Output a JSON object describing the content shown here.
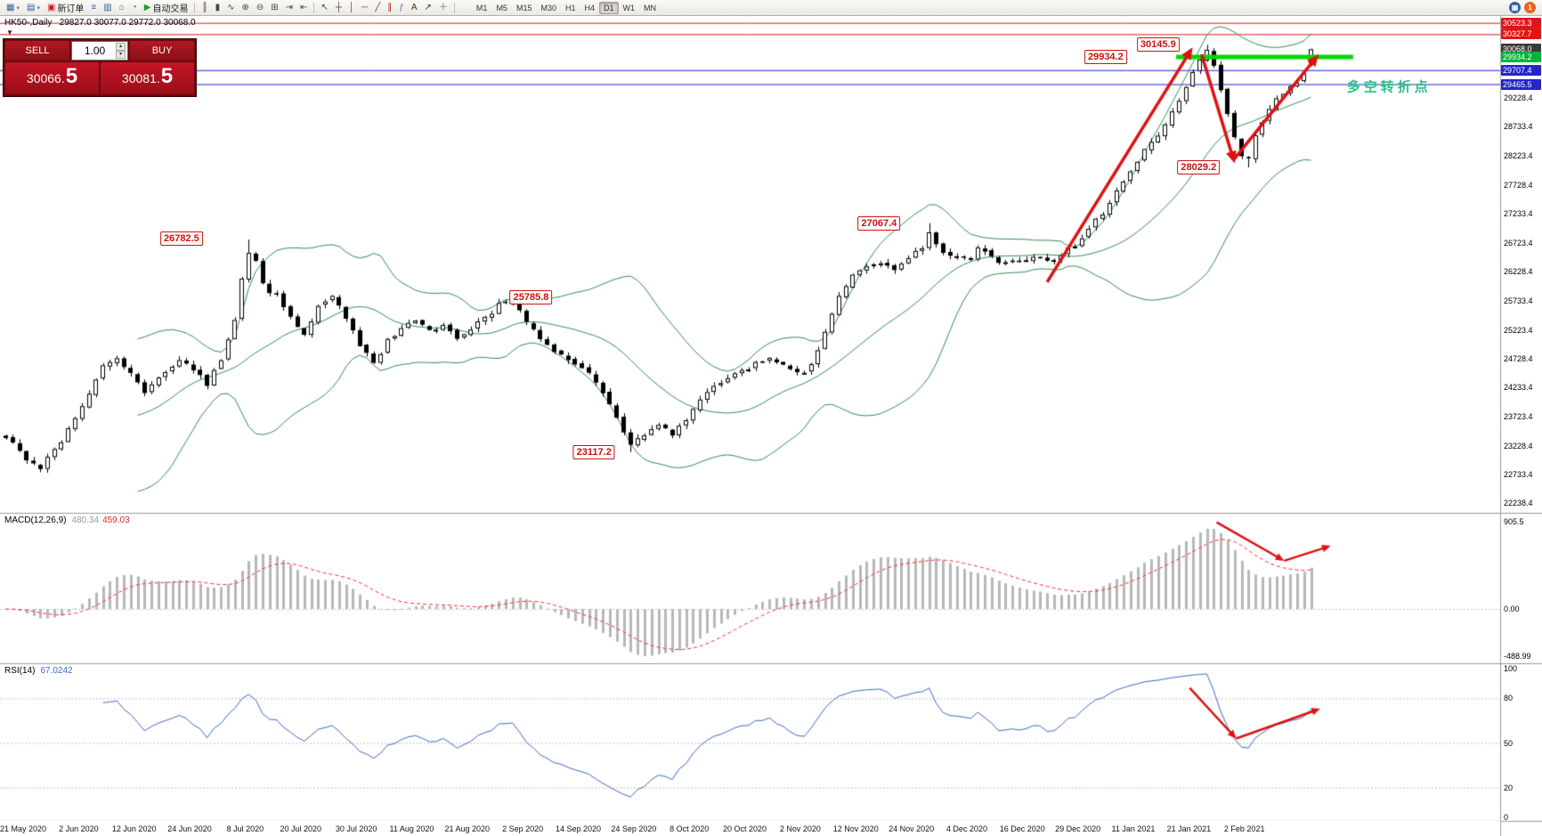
{
  "toolbar": {
    "icons": [
      {
        "name": "new-chart-icon",
        "glyph": "▦",
        "color": "#2d62a0",
        "dropdown": true
      },
      {
        "name": "profiles-icon",
        "glyph": "▤",
        "color": "#2d62a0",
        "dropdown": true
      },
      {
        "name": "new-order-button",
        "glyph": "▣",
        "color": "#c02020",
        "label": "新订单"
      },
      {
        "name": "market-watch-icon",
        "glyph": "≡",
        "color": "#2d62a0"
      },
      {
        "name": "data-window-icon",
        "glyph": "▥",
        "color": "#2d62a0"
      },
      {
        "name": "navigator-icon",
        "glyph": "⌂",
        "color": "#2d62a0"
      },
      {
        "name": "strategy-tester-icon",
        "glyph": "◔",
        "color": "#2d8a2d"
      },
      {
        "name": "autotrading-button",
        "glyph": "▶",
        "color": "#1d9e1d",
        "label": "自动交易"
      },
      {
        "sep": true
      },
      {
        "name": "bar-chart-icon",
        "glyph": "║",
        "color": "#444444"
      },
      {
        "name": "candlestick-chart-icon",
        "glyph": "▮",
        "color": "#444444"
      },
      {
        "name": "line-chart-icon",
        "glyph": "∿",
        "color": "#444444"
      },
      {
        "name": "zoom-in-icon",
        "glyph": "⊕",
        "color": "#444444"
      },
      {
        "name": "zoom-out-icon",
        "glyph": "⊖",
        "color": "#444444"
      },
      {
        "name": "tile-windows-icon",
        "glyph": "⊞",
        "color": "#444444"
      },
      {
        "name": "auto-scroll-icon",
        "glyph": "⇥",
        "color": "#444444"
      },
      {
        "name": "chart-shift-icon",
        "glyph": "⇤",
        "color": "#444444"
      },
      {
        "sep": true
      },
      {
        "name": "cursor-icon",
        "glyph": "↖",
        "color": "#444444"
      },
      {
        "name": "crosshair-icon",
        "glyph": "┼",
        "color": "#444444"
      },
      {
        "name": "vertical-line-icon",
        "glyph": "│",
        "color": "#b22222"
      },
      {
        "name": "horizontal-line-icon",
        "glyph": "─",
        "color": "#b22222"
      },
      {
        "name": "trendline-icon",
        "glyph": "╱",
        "color": "#b22222"
      },
      {
        "name": "equidistant-channel-icon",
        "glyph": "∥",
        "color": "#b22222"
      },
      {
        "name": "fibonacci-icon",
        "glyph": "ƒ",
        "color": "#8860b0"
      },
      {
        "name": "text-icon",
        "glyph": "A",
        "color": "#333333"
      },
      {
        "name": "arrows-icon",
        "glyph": "↗",
        "color": "#333333"
      },
      {
        "name": "indicators-icon",
        "glyph": "＋",
        "color": "#1d9e1d"
      },
      {
        "sep": true
      }
    ],
    "timeframes": [
      "M1",
      "M5",
      "M15",
      "M30",
      "H1",
      "H4",
      "D1",
      "W1",
      "MN"
    ],
    "active_timeframe": "D1",
    "right_icons": [
      {
        "name": "community-icon",
        "glyph": "▣",
        "color": "#2d62a0"
      },
      {
        "name": "notification-badge",
        "glyph": "1",
        "color": "#e8641e"
      }
    ]
  },
  "chart_info": {
    "text": "HK50-,Daily   29827.0 30077.0 29772.0 30068.0"
  },
  "trade_panel": {
    "collapse_icon": "▼",
    "sell_label": "SELL",
    "buy_label": "BUY",
    "volume": "1.00",
    "spin_up": "▴",
    "spin_down": "▾",
    "sell_price_main": "30066.",
    "sell_price_frac": "5",
    "buy_price_main": "30081.",
    "buy_price_frac": "5"
  },
  "chart_data": {
    "type": "candlestick",
    "symbol": "HK50-",
    "timeframe": "Daily",
    "ohlc_last": [
      29827.0,
      30077.0,
      29772.0,
      30068.0
    ],
    "arrow_color": "#dd1111",
    "price_axis": {
      "min": 22070,
      "max": 30641,
      "plain_labels": [
        "29228.4",
        "28733.4",
        "28223.4",
        "27728.4",
        "27233.4",
        "26723.4",
        "26228.4",
        "25733.4",
        "25223.4",
        "24728.4",
        "24233.4",
        "23723.4",
        "23228.4",
        "22733.4",
        "22238.4"
      ],
      "tagged_labels": [
        {
          "value": 30523.3,
          "text": "30523.3",
          "bg": "#e01616"
        },
        {
          "value": 30327.7,
          "text": "30327.7",
          "bg": "#e01616"
        },
        {
          "value": 30068.0,
          "text": "30068.0",
          "bg": "#3a3a3a"
        },
        {
          "value": 29934.2,
          "text": "29934.2",
          "bg": "#00b43c"
        },
        {
          "value": 29707.4,
          "text": "29707.4",
          "bg": "#2525cc"
        },
        {
          "value": 29465.5,
          "text": "29465.5",
          "bg": "#2525cc"
        }
      ]
    },
    "horizontal_lines": [
      {
        "price": 30523.3,
        "color": "#e01616"
      },
      {
        "price": 30327.7,
        "color": "#e01616"
      },
      {
        "price": 29707.4,
        "color": "#2525cc"
      },
      {
        "price": 29465.5,
        "color": "#2525cc"
      }
    ],
    "support_segment": {
      "price": 29934.2,
      "x1f": 0.784,
      "x2f": 0.902,
      "color": "#00d800",
      "width": 5
    },
    "candles": {
      "count": 189,
      "anchors": [
        [
          0,
          23400
        ],
        [
          3,
          23000
        ],
        [
          5,
          22850
        ],
        [
          8,
          23300
        ],
        [
          11,
          23950
        ],
        [
          14,
          24600
        ],
        [
          16,
          24750
        ],
        [
          18,
          24500
        ],
        [
          20,
          24100
        ],
        [
          22,
          24450
        ],
        [
          25,
          24700
        ],
        [
          27,
          24550
        ],
        [
          29,
          24300
        ],
        [
          31,
          24700
        ],
        [
          33,
          25400
        ],
        [
          34,
          26100
        ],
        [
          35,
          26600
        ],
        [
          36,
          26450
        ],
        [
          37,
          26000
        ],
        [
          39,
          25800
        ],
        [
          41,
          25500
        ],
        [
          43,
          25150
        ],
        [
          45,
          25600
        ],
        [
          47,
          25850
        ],
        [
          49,
          25450
        ],
        [
          51,
          24950
        ],
        [
          53,
          24650
        ],
        [
          55,
          25050
        ],
        [
          57,
          25250
        ],
        [
          59,
          25400
        ],
        [
          61,
          25200
        ],
        [
          63,
          25350
        ],
        [
          65,
          25100
        ],
        [
          67,
          25250
        ],
        [
          69,
          25450
        ],
        [
          71,
          25650
        ],
        [
          73,
          25700
        ],
        [
          75,
          25400
        ],
        [
          77,
          25050
        ],
        [
          79,
          24850
        ],
        [
          81,
          24700
        ],
        [
          83,
          24550
        ],
        [
          85,
          24350
        ],
        [
          87,
          23950
        ],
        [
          89,
          23450
        ],
        [
          90,
          23250
        ],
        [
          92,
          23400
        ],
        [
          94,
          23550
        ],
        [
          96,
          23450
        ],
        [
          98,
          23700
        ],
        [
          100,
          24050
        ],
        [
          102,
          24250
        ],
        [
          104,
          24400
        ],
        [
          106,
          24500
        ],
        [
          108,
          24650
        ],
        [
          110,
          24700
        ],
        [
          112,
          24600
        ],
        [
          114,
          24450
        ],
        [
          116,
          24600
        ],
        [
          118,
          25200
        ],
        [
          120,
          25800
        ],
        [
          122,
          26150
        ],
        [
          124,
          26300
        ],
        [
          126,
          26400
        ],
        [
          128,
          26250
        ],
        [
          130,
          26450
        ],
        [
          132,
          26650
        ],
        [
          133,
          26900
        ],
        [
          135,
          26600
        ],
        [
          137,
          26500
        ],
        [
          139,
          26450
        ],
        [
          140,
          26650
        ],
        [
          142,
          26500
        ],
        [
          144,
          26350
        ],
        [
          146,
          26400
        ],
        [
          148,
          26500
        ],
        [
          150,
          26400
        ],
        [
          152,
          26550
        ],
        [
          154,
          26700
        ],
        [
          156,
          27000
        ],
        [
          158,
          27250
        ],
        [
          160,
          27600
        ],
        [
          162,
          27950
        ],
        [
          164,
          28300
        ],
        [
          166,
          28600
        ],
        [
          168,
          28950
        ],
        [
          170,
          29450
        ],
        [
          172,
          29850
        ],
        [
          173,
          30050
        ],
        [
          174,
          29750
        ],
        [
          175,
          29400
        ],
        [
          176,
          28950
        ],
        [
          177,
          28550
        ],
        [
          178,
          28250
        ],
        [
          179,
          28150
        ],
        [
          180,
          28550
        ],
        [
          181,
          28800
        ],
        [
          182,
          29050
        ],
        [
          183,
          29200
        ],
        [
          184,
          29300
        ],
        [
          185,
          29400
        ],
        [
          186,
          29450
        ],
        [
          187,
          29650
        ],
        [
          188,
          30068
        ]
      ],
      "pin_highs": {
        "35": 26782.5,
        "73": 25785.8,
        "133": 27067.4,
        "173": 30145.9
      },
      "pin_lows": {
        "5": 22770.0,
        "90": 23117.2,
        "179": 28029.2
      },
      "last": {
        "o": 29827.0,
        "h": 30077.0,
        "l": 29772.0,
        "c": 30068.0
      }
    },
    "bollinger": {
      "period": 20,
      "deviation": 2,
      "color": "#2f8f52"
    },
    "callouts": [
      {
        "text": "26782.5",
        "xf": 0.121,
        "price": 26800
      },
      {
        "text": "25785.8",
        "xf": 0.354,
        "price": 25790
      },
      {
        "text": "23117.2",
        "xf": 0.396,
        "price": 23120
      },
      {
        "text": "27067.4",
        "xf": 0.586,
        "price": 27060
      },
      {
        "text": "28029.2",
        "xf": 0.799,
        "price": 28030
      },
      {
        "text": "29934.2",
        "xf": 0.737,
        "price": 29930
      },
      {
        "text": "30145.9",
        "xf": 0.772,
        "price": 30150
      }
    ],
    "note": {
      "text": "多空转折点",
      "xf": 0.926,
      "price": 29420,
      "color": "#2dbd8a"
    },
    "trend_arrows": [
      {
        "x1f": 0.698,
        "p1": 26050,
        "x2f": 0.795,
        "p2": 30100,
        "w": 3.5
      },
      {
        "x1f": 0.801,
        "p1": 29980,
        "x2f": 0.823,
        "p2": 28100,
        "w": 3.5
      },
      {
        "x1f": 0.822,
        "p1": 28150,
        "x2f": 0.879,
        "p2": 29980,
        "w": 3.5
      }
    ],
    "macd": {
      "label": "MACD(12,26,9)",
      "value_main": "480.34",
      "value_signal": "459.03",
      "fast": 12,
      "slow": 26,
      "signal": 9,
      "scale_max": 905.5,
      "zero_frac": 0.64,
      "hist_color": "#b8b8b8",
      "signal_color": "#ff2a2a",
      "axis_labels": [
        {
          "v": 905.5,
          "text": "905.5"
        },
        {
          "v": 0,
          "text": "0.00"
        },
        {
          "v": -488.99,
          "text": "-488.99"
        }
      ],
      "arrows": [
        {
          "x1f": 0.811,
          "v1": 900,
          "x2f": 0.856,
          "v2": 500,
          "w": 2.5
        },
        {
          "x1f": 0.856,
          "v1": 500,
          "x2f": 0.887,
          "v2": 655,
          "w": 2.5
        }
      ]
    },
    "rsi": {
      "label": "RSI(14)",
      "value": "67.0242",
      "period": 14,
      "line_color": "#3e66cc",
      "axis_labels": [
        "100",
        "80",
        "50",
        "20",
        "0"
      ],
      "axis_values": [
        100,
        80,
        50,
        20,
        0
      ],
      "levels": [
        80,
        50,
        20
      ],
      "arrows": [
        {
          "x1f": 0.793,
          "v1": 87,
          "x2f": 0.824,
          "v2": 53,
          "w": 2.5
        },
        {
          "x1f": 0.824,
          "v1": 53,
          "x2f": 0.88,
          "v2": 73,
          "w": 2.5
        }
      ]
    },
    "dates": [
      "21 May 2020",
      "2 Jun 2020",
      "12 Jun 2020",
      "24 Jun 2020",
      "8 Jul 2020",
      "20 Jul 2020",
      "30 Jul 2020",
      "11 Aug 2020",
      "21 Aug 2020",
      "2 Sep 2020",
      "14 Sep 2020",
      "24 Sep 2020",
      "8 Oct 2020",
      "20 Oct 2020",
      "2 Nov 2020",
      "12 Nov 2020",
      "24 Nov 2020",
      "4 Dec 2020",
      "16 Dec 2020",
      "29 Dec 2020",
      "11 Jan 2021",
      "21 Jan 2021",
      "2 Feb 2021"
    ]
  }
}
